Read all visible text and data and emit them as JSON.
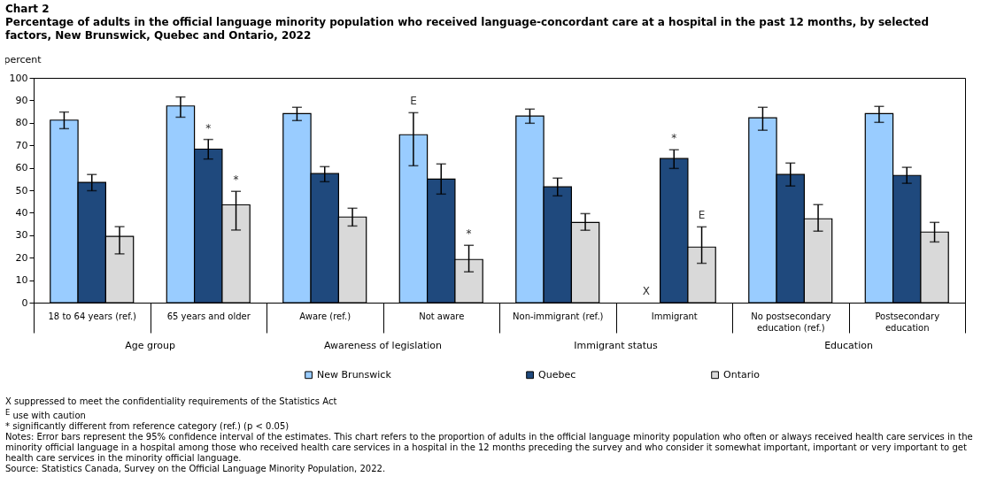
{
  "chart_data": {
    "type": "bar",
    "title": "Chart 2",
    "subtitle": "Percentage of adults in the official language minority population who received language-concordant care at a hospital in the past 12 months, by selected factors, New Brunswick, Quebec and Ontario, 2022",
    "ylabel": "percent",
    "categories": [
      "18 to 64 years (ref.)",
      "65 years and older",
      "Aware (ref.)",
      "Not aware",
      "Non-immigrant (ref.)",
      "Immigrant",
      "No postsecondary education (ref.)",
      "Postsecondary education"
    ],
    "series": [
      {
        "name": "New Brunswick",
        "color": "#99ccff",
        "values": [
          81.2,
          87.5,
          84.1,
          74.7,
          83.0,
          null,
          82.2,
          84.1
        ],
        "errors": [
          [
            77.4,
            84.8
          ],
          [
            82.5,
            91.5
          ],
          [
            81.0,
            86.9
          ],
          [
            60.9,
            84.5
          ],
          [
            79.8,
            86.1
          ],
          null,
          [
            76.7,
            86.9
          ],
          [
            80.2,
            87.3
          ]
        ],
        "value_labels": [
          null,
          null,
          null,
          "E",
          null,
          "X",
          null,
          null
        ]
      },
      {
        "name": "Quebec",
        "color": "#1f497d",
        "values": [
          53.5,
          68.3,
          57.4,
          55.0,
          51.5,
          64.1,
          57.0,
          56.6
        ],
        "errors": [
          [
            49.8,
            57.0
          ],
          [
            63.9,
            72.6
          ],
          [
            53.8,
            60.5
          ],
          [
            48.3,
            61.7
          ],
          [
            47.5,
            55.4
          ],
          [
            59.7,
            68.0
          ],
          [
            51.9,
            62.1
          ],
          [
            53.1,
            60.2
          ]
        ],
        "value_labels": [
          null,
          "*",
          null,
          null,
          null,
          "*",
          null,
          null
        ]
      },
      {
        "name": "Ontario",
        "color": "#d9d9d9",
        "values": [
          29.5,
          43.5,
          38.1,
          19.2,
          35.7,
          24.7,
          37.3,
          31.4
        ],
        "errors": [
          [
            21.7,
            33.8
          ],
          [
            32.3,
            49.5
          ],
          [
            34.1,
            42.0
          ],
          [
            13.7,
            25.5
          ],
          [
            32.2,
            39.6
          ],
          [
            17.5,
            33.7
          ],
          [
            31.8,
            43.6
          ],
          [
            27.0,
            35.7
          ]
        ],
        "value_labels": [
          null,
          "*",
          null,
          "*",
          null,
          "E",
          null,
          null
        ]
      }
    ],
    "ylim": [
      0,
      100
    ],
    "yticks": [
      0,
      10,
      20,
      30,
      40,
      50,
      60,
      70,
      80,
      90,
      100
    ],
    "legend": "bottom",
    "annotations": [
      "Age group",
      "Awareness of legislation",
      "Immigrant status",
      "Education",
      "X suppressed to meet the confidentiality requirements of the Statistics Act",
      "$^{E}$ use with caution",
      "* significantly different from reference category (ref.) (p < 0.05)",
      "Notes: Error bars represent the 95% confidence interval of the estimates. This chart refers to the proportion of adults in the official language minority population who often or always received health care services in the minority official language in a hospital among those who received health care services in a hospital in the 12 months preceding the survey and who consider it somewhat important, important or very important to get health care services in the minority official language.",
      "Source: Statistics Canada, Survey on the Official Language Minority Population, 2022."
    ]
  }
}
